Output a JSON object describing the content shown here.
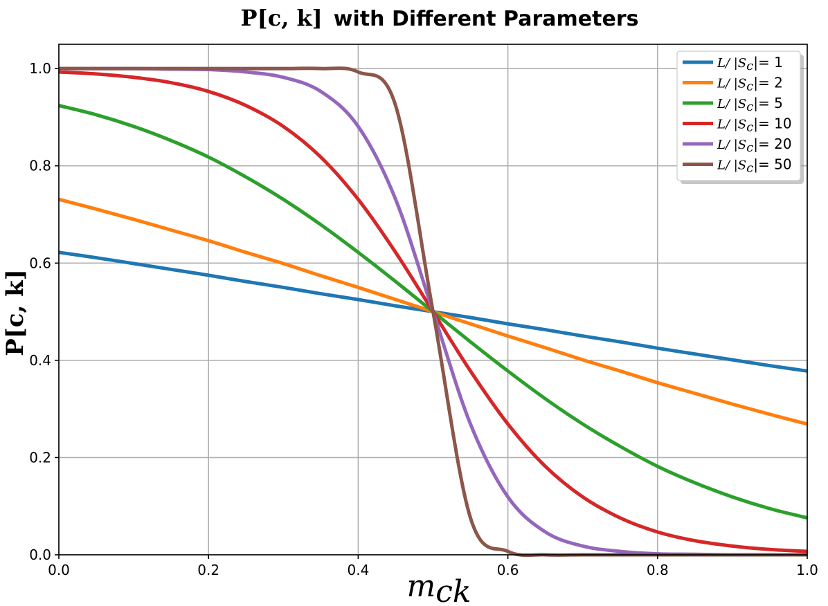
{
  "chart_data": {
    "type": "line",
    "title_math": "P[c, k]",
    "title_text": "with Different Parameters",
    "xlabel_main": "m",
    "xlabel_sub": "ck",
    "ylabel_math": "P[c, k]",
    "xlim": [
      0.0,
      1.0
    ],
    "ylim": [
      0.0,
      1.05
    ],
    "x_ticks": [
      "0.0",
      "0.2",
      "0.4",
      "0.6",
      "0.8",
      "1.0"
    ],
    "y_ticks": [
      "0.0",
      "0.2",
      "0.4",
      "0.6",
      "0.8",
      "1.0"
    ],
    "x_tick_values": [
      0.0,
      0.2,
      0.4,
      0.6,
      0.8,
      1.0
    ],
    "y_tick_values": [
      0.0,
      0.2,
      0.4,
      0.6,
      0.8,
      1.0
    ],
    "grid": true,
    "legend_position": "top-right",
    "x": [
      0.0,
      0.05,
      0.1,
      0.15,
      0.2,
      0.25,
      0.3,
      0.35,
      0.4,
      0.45,
      0.5,
      0.55,
      0.6,
      0.65,
      0.7,
      0.75,
      0.8,
      0.85,
      0.9,
      0.95,
      1.0
    ],
    "series": [
      {
        "name_prefix": "L/ |S",
        "name_sub": "c",
        "name_suffix": "|= 1",
        "color": "#1f77b4",
        "values": [
          0.622,
          0.611,
          0.599,
          0.587,
          0.575,
          0.562,
          0.55,
          0.537,
          0.525,
          0.512,
          0.5,
          0.488,
          0.475,
          0.463,
          0.45,
          0.438,
          0.425,
          0.413,
          0.401,
          0.389,
          0.378
        ]
      },
      {
        "name_prefix": "L/ |S",
        "name_sub": "c",
        "name_suffix": "|= 2",
        "color": "#ff7f0e",
        "values": [
          0.731,
          0.711,
          0.69,
          0.668,
          0.646,
          0.622,
          0.599,
          0.574,
          0.55,
          0.525,
          0.5,
          0.475,
          0.45,
          0.426,
          0.401,
          0.378,
          0.354,
          0.332,
          0.31,
          0.289,
          0.269
        ]
      },
      {
        "name_prefix": "L/ |S",
        "name_sub": "c",
        "name_suffix": "|= 5",
        "color": "#2ca02c",
        "values": [
          0.924,
          0.905,
          0.881,
          0.852,
          0.818,
          0.777,
          0.731,
          0.679,
          0.622,
          0.562,
          0.5,
          0.438,
          0.378,
          0.321,
          0.269,
          0.223,
          0.182,
          0.148,
          0.119,
          0.095,
          0.076
        ]
      },
      {
        "name_prefix": "L/ |S",
        "name_sub": "c",
        "name_suffix": "|= 10",
        "color": "#d62728",
        "values": [
          0.993,
          0.989,
          0.982,
          0.971,
          0.953,
          0.924,
          0.881,
          0.818,
          0.731,
          0.622,
          0.5,
          0.378,
          0.269,
          0.182,
          0.119,
          0.076,
          0.047,
          0.029,
          0.018,
          0.011,
          0.007
        ]
      },
      {
        "name_prefix": "L/ |S",
        "name_sub": "c",
        "name_suffix": "|= 20",
        "color": "#9467bd",
        "values": [
          1.0,
          1.0,
          1.0,
          0.999,
          0.998,
          0.993,
          0.982,
          0.953,
          0.881,
          0.731,
          0.5,
          0.269,
          0.119,
          0.047,
          0.018,
          0.007,
          0.002,
          0.001,
          0.0,
          0.0,
          0.0
        ]
      },
      {
        "name_prefix": "L/ |S",
        "name_sub": "c",
        "name_suffix": "|= 50",
        "color": "#8c564b",
        "values": [
          1.0,
          1.0,
          1.0,
          1.0,
          1.0,
          1.0,
          1.0,
          1.0,
          0.993,
          0.924,
          0.5,
          0.076,
          0.007,
          0.0,
          0.0,
          0.0,
          0.0,
          0.0,
          0.0,
          0.0,
          0.0
        ]
      }
    ]
  }
}
